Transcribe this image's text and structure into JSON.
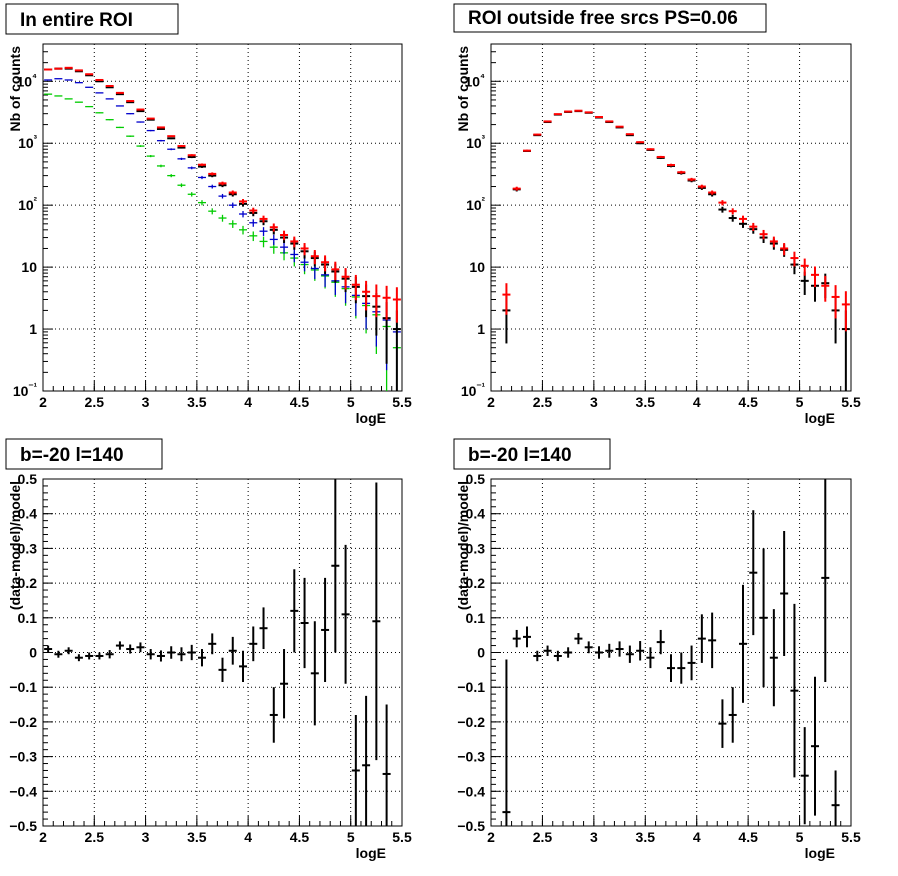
{
  "chart_data": [
    {
      "type": "scatter",
      "title": "In entire ROI",
      "xlabel": "logE",
      "ylabel": "Nb of counts",
      "xlim": [
        2,
        5.5
      ],
      "ylim": [
        0.1,
        40000
      ],
      "log_y": true,
      "grid": true,
      "x_ticks": [
        "2",
        "2.5",
        "3",
        "3.5",
        "4",
        "4.5",
        "5",
        "5.5"
      ],
      "y_ticks": [
        "10⁻¹",
        "1",
        "10",
        "10²",
        "10³",
        "10⁴"
      ],
      "series": [
        {
          "color": "#00cc00",
          "x": [
            2.05,
            2.15,
            2.25,
            2.35,
            2.45,
            2.55,
            2.65,
            2.75,
            2.85,
            2.95,
            3.05,
            3.15,
            3.25,
            3.35,
            3.45,
            3.55,
            3.65,
            3.75,
            3.85,
            3.95,
            4.05,
            4.15,
            4.25,
            4.35,
            4.45,
            4.55,
            4.65,
            4.75,
            4.85,
            4.95,
            5.05,
            5.15,
            5.25,
            5.35,
            5.45
          ],
          "y": [
            6200,
            5800,
            5200,
            4600,
            3900,
            3100,
            2400,
            1800,
            1300,
            900,
            620,
            430,
            300,
            210,
            150,
            110,
            80,
            62,
            50,
            40,
            32,
            26,
            21,
            17,
            14,
            11,
            9,
            7.2,
            5.7,
            4.5,
            3.3,
            2.4,
            1.7,
            1.1,
            0.5
          ]
        },
        {
          "color": "#0000cc",
          "x": [
            2.05,
            2.15,
            2.25,
            2.35,
            2.45,
            2.55,
            2.65,
            2.75,
            2.85,
            2.95,
            3.05,
            3.15,
            3.25,
            3.35,
            3.45,
            3.55,
            3.65,
            3.75,
            3.85,
            3.95,
            4.05,
            4.15,
            4.25,
            4.35,
            4.45,
            4.55,
            4.65,
            4.75,
            4.85,
            4.95,
            5.05,
            5.15,
            5.25,
            5.35,
            5.45
          ],
          "y": [
            10500,
            11000,
            10500,
            9500,
            8000,
            6500,
            5200,
            4000,
            3000,
            2200,
            1600,
            1100,
            800,
            560,
            400,
            280,
            200,
            140,
            100,
            72,
            52,
            38,
            28,
            21,
            16,
            12,
            9.5,
            7.5,
            6,
            4.8,
            3.5,
            2.6,
            1.9,
            1.4,
            0.9
          ]
        },
        {
          "color": "#000000",
          "x": [
            2.05,
            2.15,
            2.25,
            2.35,
            2.45,
            2.55,
            2.65,
            2.75,
            2.85,
            2.95,
            3.05,
            3.15,
            3.25,
            3.35,
            3.45,
            3.55,
            3.65,
            3.75,
            3.85,
            3.95,
            4.05,
            4.15,
            4.25,
            4.35,
            4.45,
            4.55,
            4.65,
            4.75,
            4.85,
            4.95,
            5.05,
            5.15,
            5.25,
            5.35,
            5.45
          ],
          "y": [
            15500,
            16000,
            16000,
            14500,
            12500,
            10000,
            8000,
            6200,
            4600,
            3300,
            2400,
            1700,
            1200,
            850,
            600,
            420,
            300,
            210,
            150,
            105,
            75,
            55,
            40,
            30,
            24,
            18,
            14,
            11,
            8.5,
            6.5,
            4.8,
            3.4,
            2.3,
            1.5,
            1
          ]
        },
        {
          "color": "#ff0000",
          "x": [
            2.05,
            2.15,
            2.25,
            2.35,
            2.45,
            2.55,
            2.65,
            2.75,
            2.85,
            2.95,
            3.05,
            3.15,
            3.25,
            3.35,
            3.45,
            3.55,
            3.65,
            3.75,
            3.85,
            3.95,
            4.05,
            4.15,
            4.25,
            4.35,
            4.45,
            4.55,
            4.65,
            4.75,
            4.85,
            4.95,
            5.05,
            5.15,
            5.25,
            5.35,
            5.45
          ],
          "y": [
            15500,
            16000,
            16500,
            15000,
            13000,
            10500,
            8400,
            6500,
            4800,
            3500,
            2500,
            1800,
            1300,
            900,
            640,
            450,
            320,
            225,
            160,
            115,
            82,
            60,
            44,
            33,
            26,
            20,
            15,
            12,
            9.2,
            7,
            5.2,
            4,
            3.4,
            3.2,
            3
          ]
        }
      ]
    },
    {
      "type": "scatter",
      "title": "ROI outside free srcs PS=0.06",
      "xlabel": "logE",
      "ylabel": "Nb of counts",
      "xlim": [
        2,
        5.5
      ],
      "ylim": [
        0.1,
        40000
      ],
      "log_y": true,
      "grid": true,
      "x_ticks": [
        "2",
        "2.5",
        "3",
        "3.5",
        "4",
        "4.5",
        "5",
        "5.5"
      ],
      "y_ticks": [
        "10⁻¹",
        "1",
        "10",
        "10²",
        "10³",
        "10⁴"
      ],
      "series": [
        {
          "color": "#000000",
          "x": [
            2.15,
            2.25,
            2.35,
            2.45,
            2.55,
            2.65,
            2.75,
            2.85,
            2.95,
            3.05,
            3.15,
            3.25,
            3.35,
            3.45,
            3.55,
            3.65,
            3.75,
            3.85,
            3.95,
            4.05,
            4.15,
            4.25,
            4.35,
            4.45,
            4.55,
            4.65,
            4.75,
            4.85,
            4.95,
            5.05,
            5.15,
            5.25,
            5.35,
            5.45
          ],
          "y": [
            2,
            180,
            750,
            1350,
            2200,
            2900,
            3200,
            3300,
            3100,
            2600,
            2200,
            1800,
            1350,
            1000,
            780,
            580,
            430,
            330,
            250,
            190,
            150,
            85,
            62,
            50,
            41,
            30,
            24,
            19,
            11,
            6,
            5,
            5.5,
            2,
            1
          ]
        },
        {
          "color": "#ff0000",
          "x": [
            2.15,
            2.25,
            2.35,
            2.45,
            2.55,
            2.65,
            2.75,
            2.85,
            2.95,
            3.05,
            3.15,
            3.25,
            3.35,
            3.45,
            3.55,
            3.65,
            3.75,
            3.85,
            3.95,
            4.05,
            4.15,
            4.25,
            4.35,
            4.45,
            4.55,
            4.65,
            4.75,
            4.85,
            4.95,
            5.05,
            5.15,
            5.25,
            5.35,
            5.45
          ],
          "y": [
            3.6,
            185,
            760,
            1380,
            2250,
            2950,
            3250,
            3350,
            3150,
            2650,
            2250,
            1850,
            1400,
            1040,
            800,
            600,
            445,
            340,
            260,
            200,
            160,
            110,
            80,
            60,
            45,
            34,
            26,
            20,
            14,
            10.5,
            7.5,
            5,
            3.3,
            2.5
          ]
        }
      ]
    },
    {
      "type": "scatter",
      "title": "b=-20 l=140",
      "xlabel": "logE",
      "ylabel": "(data-model)/model",
      "xlim": [
        2,
        5.5
      ],
      "ylim": [
        -0.5,
        0.5
      ],
      "grid": true,
      "x_ticks": [
        "2",
        "2.5",
        "3",
        "3.5",
        "4",
        "4.5",
        "5",
        "5.5"
      ],
      "y_ticks": [
        "−0.5",
        "−0.4",
        "−0.3",
        "−0.2",
        "−0.1",
        "0",
        "0.1",
        "0.2",
        "0.3",
        "0.4",
        "0.5"
      ],
      "series": [
        {
          "color": "#000000",
          "x": [
            2.05,
            2.15,
            2.25,
            2.35,
            2.45,
            2.55,
            2.65,
            2.75,
            2.85,
            2.95,
            3.05,
            3.15,
            3.25,
            3.35,
            3.45,
            3.55,
            3.65,
            3.75,
            3.85,
            3.95,
            4.05,
            4.15,
            4.25,
            4.35,
            4.45,
            4.55,
            4.65,
            4.75,
            4.85,
            4.95,
            5.05,
            5.15,
            5.25,
            5.35
          ],
          "y": [
            0.01,
            -0.005,
            0.005,
            -0.015,
            -0.01,
            -0.01,
            -0.005,
            0.02,
            0.01,
            0.015,
            -0.005,
            -0.01,
            0,
            -0.005,
            0,
            -0.015,
            0.025,
            -0.05,
            0.005,
            -0.04,
            0.025,
            0.07,
            -0.18,
            -0.09,
            0.12,
            0.085,
            -0.06,
            0.065,
            0.25,
            0.11,
            -0.34,
            -0.325,
            0.09,
            -0.35
          ],
          "err": [
            0.01,
            0.01,
            0.01,
            0.01,
            0.01,
            0.01,
            0.012,
            0.012,
            0.013,
            0.014,
            0.015,
            0.016,
            0.018,
            0.02,
            0.022,
            0.025,
            0.03,
            0.035,
            0.04,
            0.045,
            0.05,
            0.06,
            0.08,
            0.1,
            0.12,
            0.13,
            0.15,
            0.15,
            0.25,
            0.2,
            0.16,
            0.2,
            0.4,
            0.2
          ]
        }
      ]
    },
    {
      "type": "scatter",
      "title": "b=-20 l=140",
      "xlabel": "logE",
      "ylabel": "(data-model)/model",
      "xlim": [
        2,
        5.5
      ],
      "ylim": [
        -0.5,
        0.5
      ],
      "grid": true,
      "x_ticks": [
        "2",
        "2.5",
        "3",
        "3.5",
        "4",
        "4.5",
        "5",
        "5.5"
      ],
      "y_ticks": [
        "−0.5",
        "−0.4",
        "−0.3",
        "−0.2",
        "−0.1",
        "0",
        "0.1",
        "0.2",
        "0.3",
        "0.4",
        "0.5"
      ],
      "series": [
        {
          "color": "#000000",
          "x": [
            2.15,
            2.25,
            2.35,
            2.45,
            2.55,
            2.65,
            2.75,
            2.85,
            2.95,
            3.05,
            3.15,
            3.25,
            3.35,
            3.45,
            3.55,
            3.65,
            3.75,
            3.85,
            3.95,
            4.05,
            4.15,
            4.25,
            4.35,
            4.45,
            4.55,
            4.65,
            4.75,
            4.85,
            4.95,
            5.05,
            5.15,
            5.25,
            5.35
          ],
          "y": [
            -0.46,
            0.04,
            0.045,
            -0.01,
            0.005,
            -0.01,
            0,
            0.04,
            0.015,
            0,
            0.005,
            0.01,
            -0.005,
            0.005,
            -0.015,
            0.03,
            -0.045,
            -0.045,
            -0.03,
            0.04,
            0.035,
            -0.205,
            -0.18,
            0.025,
            0.23,
            0.1,
            -0.015,
            0.17,
            -0.11,
            -0.355,
            -0.27,
            0.215,
            -0.44
          ],
          "err": [
            0.44,
            0.025,
            0.03,
            0.015,
            0.015,
            0.015,
            0.015,
            0.016,
            0.017,
            0.018,
            0.02,
            0.022,
            0.025,
            0.028,
            0.03,
            0.035,
            0.04,
            0.045,
            0.05,
            0.07,
            0.08,
            0.07,
            0.08,
            0.17,
            0.18,
            0.2,
            0.14,
            0.18,
            0.25,
            0.14,
            0.2,
            0.3,
            0.1
          ]
        }
      ]
    }
  ]
}
